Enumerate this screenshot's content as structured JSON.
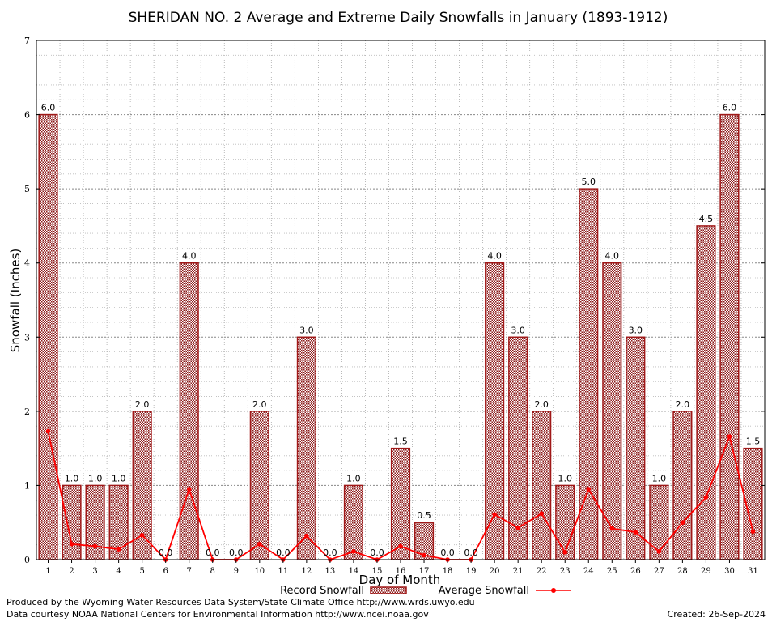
{
  "chart_data": {
    "type": "bar",
    "title": "SHERIDAN NO. 2 Average and Extreme Daily Snowfalls in January (1893-1912)",
    "xlabel": "Day of Month",
    "ylabel": "Snowfall (Inches)",
    "ylim": [
      0,
      7
    ],
    "yticks": [
      "0",
      "1",
      "2",
      "3",
      "4",
      "5",
      "6",
      "7"
    ],
    "grid": true,
    "legend_position": "bottom",
    "categories": [
      "1",
      "2",
      "3",
      "4",
      "5",
      "6",
      "7",
      "8",
      "9",
      "10",
      "11",
      "12",
      "13",
      "14",
      "15",
      "16",
      "17",
      "18",
      "19",
      "20",
      "21",
      "22",
      "23",
      "24",
      "25",
      "26",
      "27",
      "28",
      "29",
      "30",
      "31"
    ],
    "series": [
      {
        "name": "Record Snowfall",
        "type": "bar",
        "color": "#a01818",
        "values": [
          6.0,
          1.0,
          1.0,
          1.0,
          2.0,
          0.0,
          4.0,
          0.0,
          0.0,
          2.0,
          0.0,
          3.0,
          0.0,
          1.0,
          0.0,
          1.5,
          0.5,
          0.0,
          0.0,
          4.0,
          3.0,
          2.0,
          1.0,
          5.0,
          4.0,
          3.0,
          1.0,
          2.0,
          4.5,
          6.0,
          1.5
        ],
        "labels": [
          "6.0",
          "1.0",
          "1.0",
          "1.0",
          "2.0",
          "0.0",
          "4.0",
          "0.0",
          "0.0",
          "2.0",
          "0.0",
          "3.0",
          "0.0",
          "1.0",
          "0.0",
          "1.5",
          "0.5",
          "0.0",
          "0.0",
          "4.0",
          "3.0",
          "2.0",
          "1.0",
          "5.0",
          "4.0",
          "3.0",
          "1.0",
          "2.0",
          "4.5",
          "6.0",
          "1.5"
        ]
      },
      {
        "name": "Average Snowfall",
        "type": "line",
        "color": "#ff0000",
        "values": [
          1.73,
          0.21,
          0.18,
          0.14,
          0.33,
          0.0,
          0.95,
          0.0,
          0.0,
          0.21,
          0.0,
          0.32,
          0.0,
          0.11,
          0.0,
          0.18,
          0.06,
          0.0,
          0.0,
          0.61,
          0.43,
          0.62,
          0.1,
          0.95,
          0.42,
          0.37,
          0.11,
          0.5,
          0.84,
          1.66,
          0.38
        ]
      }
    ]
  },
  "footer": {
    "producer": "Produced by the Wyoming Water Resources Data System/State Climate Office http://www.wrds.uwyo.edu",
    "source": "Data courtesy NOAA National Centers for Environmental Information http://www.ncei.noaa.gov",
    "created": "Created:  26-Sep-2024"
  }
}
